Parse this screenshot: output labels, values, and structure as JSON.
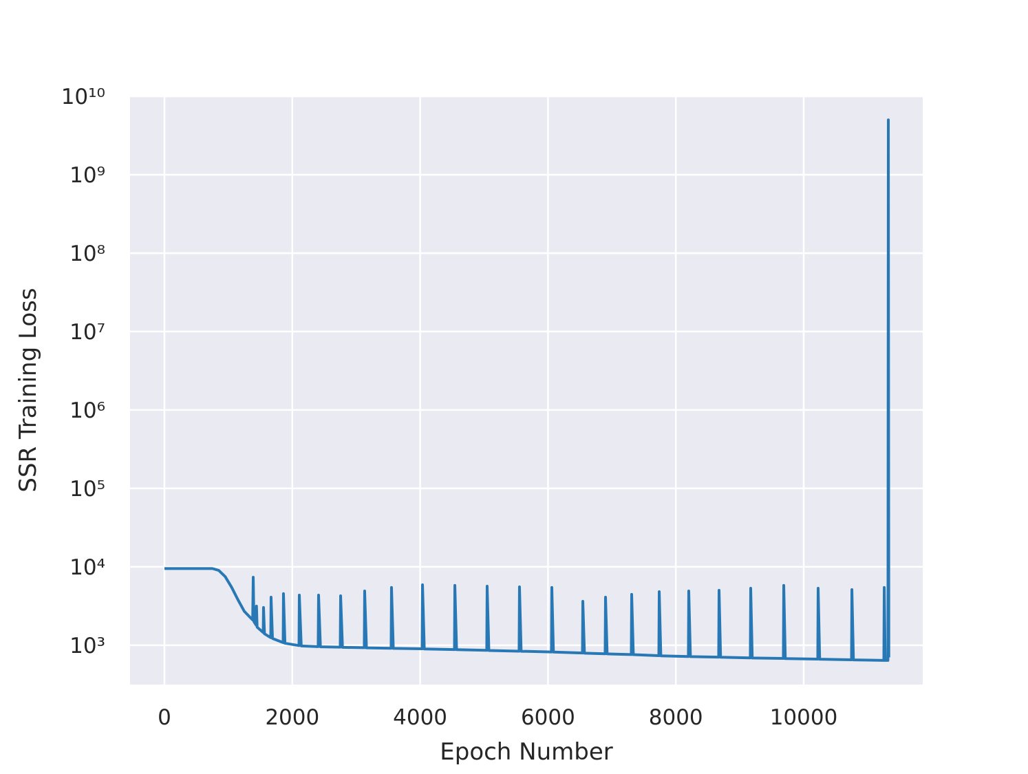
{
  "chart_data": {
    "type": "line",
    "xlabel": "Epoch Number",
    "ylabel": "SSR Training Loss",
    "ylog": true,
    "grid": true,
    "xlim": [
      -538,
      11862
    ],
    "ylim": [
      315,
      10000000000
    ],
    "xticks": [
      0,
      2000,
      4000,
      6000,
      8000,
      10000
    ],
    "yticks": [
      {
        "value": 1000,
        "label": "10³"
      },
      {
        "value": 10000,
        "label": "10⁴"
      },
      {
        "value": 100000,
        "label": "10⁵"
      },
      {
        "value": 1000000,
        "label": "10⁶"
      },
      {
        "value": 10000000,
        "label": "10⁷"
      },
      {
        "value": 100000000,
        "label": "10⁸"
      },
      {
        "value": 1000000000,
        "label": "10⁹"
      },
      {
        "value": 10000000000,
        "label": "10¹⁰"
      }
    ],
    "series": [
      {
        "color": "#2878b5",
        "x": [
          0,
          750,
          850,
          950,
          1050,
          1150,
          1250,
          1380,
          1389,
          1400,
          1435,
          1440,
          1450,
          1545,
          1550,
          1565,
          1663,
          1668,
          1690,
          1857,
          1862,
          1885,
          2105,
          2110,
          2140,
          2405,
          2411,
          2440,
          2750,
          2756,
          2785,
          3126,
          3132,
          3160,
          3546,
          3552,
          3580,
          4031,
          4037,
          4065,
          4537,
          4543,
          4570,
          5042,
          5048,
          5075,
          5548,
          5554,
          5580,
          6054,
          6060,
          6085,
          6539,
          6545,
          6570,
          6894,
          6900,
          6925,
          7303,
          7309,
          7335,
          7734,
          7740,
          7765,
          8196,
          8202,
          8228,
          8670,
          8676,
          8700,
          9165,
          9171,
          9195,
          9682,
          9688,
          9712,
          10220,
          10226,
          10250,
          10748,
          10754,
          10778,
          11254,
          11260,
          11275,
          11318,
          11324,
          11328,
          11332
        ],
        "values": [
          9500,
          9500,
          9000,
          7500,
          5500,
          3800,
          2700,
          2100,
          7360,
          2000,
          1800,
          3150,
          1700,
          1450,
          3030,
          1400,
          1250,
          4100,
          1220,
          1080,
          4540,
          1060,
          990,
          4360,
          980,
          960,
          4360,
          955,
          945,
          4270,
          940,
          930,
          4920,
          925,
          915,
          5450,
          912,
          900,
          5900,
          897,
          880,
          5790,
          878,
          860,
          5660,
          857,
          840,
          5550,
          838,
          820,
          5450,
          818,
          795,
          3630,
          792,
          778,
          4100,
          776,
          760,
          4450,
          758,
          735,
          4820,
          733,
          718,
          4920,
          716,
          705,
          5020,
          703,
          690,
          5330,
          688,
          678,
          5790,
          676,
          665,
          5330,
          663,
          652,
          5120,
          650,
          640,
          5450,
          640,
          640,
          5000000000,
          1000000,
          700
        ]
      }
    ]
  }
}
